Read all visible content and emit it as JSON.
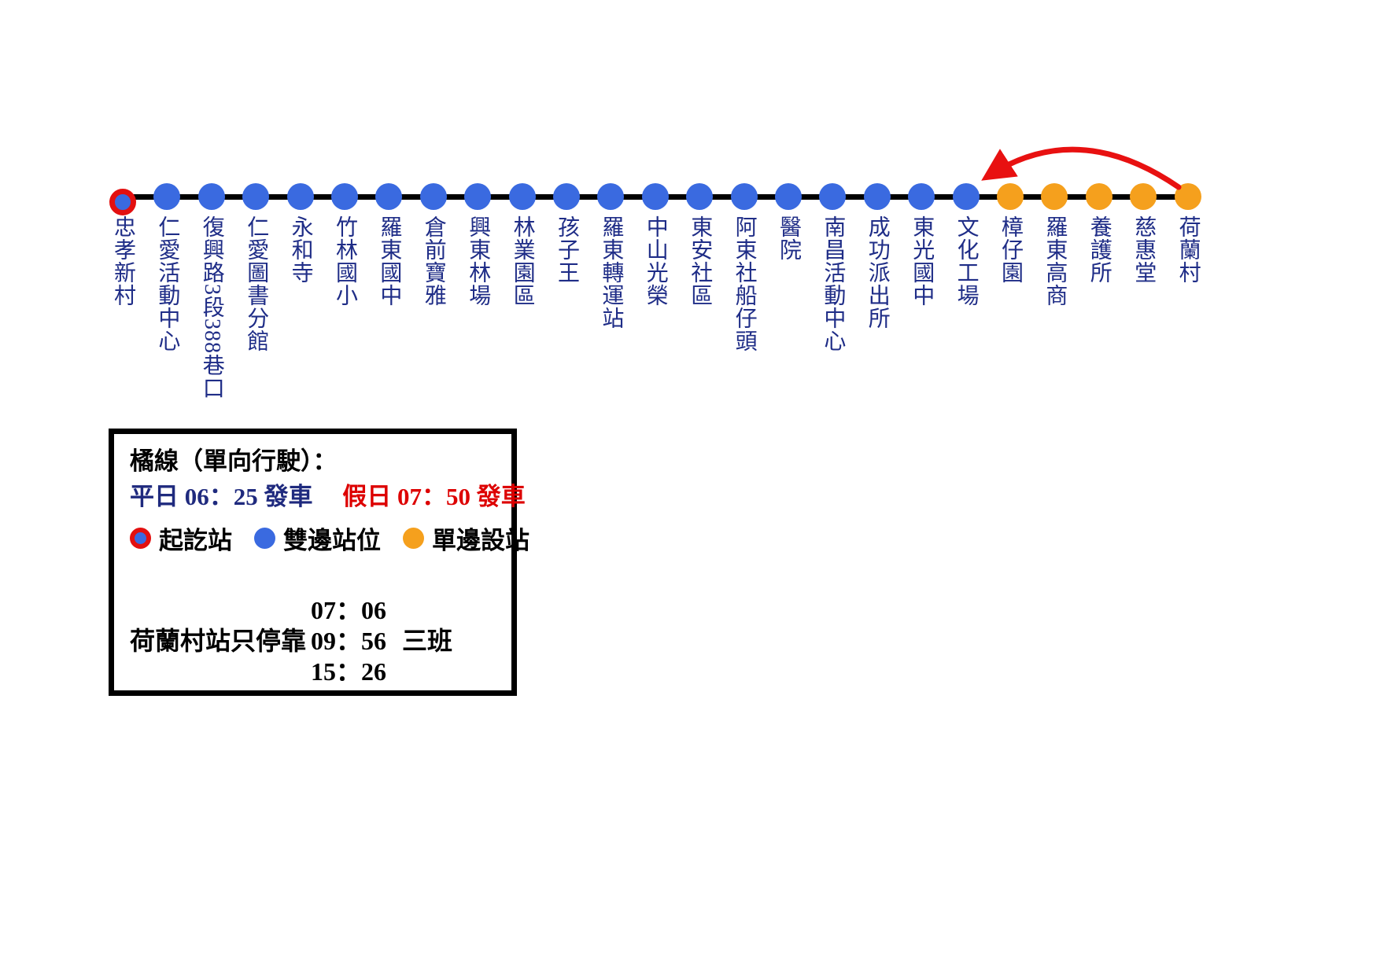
{
  "route": {
    "stops": [
      {
        "name": "忠孝新村",
        "type": "terminus"
      },
      {
        "name": "仁愛活動中心",
        "type": "both-side"
      },
      {
        "name": "復興路3段388巷口",
        "type": "both-side"
      },
      {
        "name": "仁愛圖書分館",
        "type": "both-side"
      },
      {
        "name": "永和寺",
        "type": "both-side"
      },
      {
        "name": "竹林國小",
        "type": "both-side"
      },
      {
        "name": "羅東國中",
        "type": "both-side"
      },
      {
        "name": "倉前寶雅",
        "type": "both-side"
      },
      {
        "name": "興東林場",
        "type": "both-side"
      },
      {
        "name": "林業園區",
        "type": "both-side"
      },
      {
        "name": "孩子王",
        "type": "both-side"
      },
      {
        "name": "羅東轉運站",
        "type": "both-side"
      },
      {
        "name": "中山光榮",
        "type": "both-side"
      },
      {
        "name": "東安社區",
        "type": "both-side"
      },
      {
        "name": "阿束社船仔頭",
        "type": "both-side"
      },
      {
        "name": "醫院",
        "type": "both-side"
      },
      {
        "name": "南昌活動中心",
        "type": "both-side"
      },
      {
        "name": "成功派出所",
        "type": "both-side"
      },
      {
        "name": "東光國中",
        "type": "both-side"
      },
      {
        "name": "文化工場",
        "type": "both-side"
      },
      {
        "name": "樟仔園",
        "type": "single-side"
      },
      {
        "name": "羅東高商",
        "type": "single-side"
      },
      {
        "name": "養護所",
        "type": "single-side"
      },
      {
        "name": "慈惠堂",
        "type": "single-side"
      },
      {
        "name": "荷蘭村",
        "type": "single-side"
      }
    ],
    "arrow": {
      "from": "荷蘭村",
      "to": "文化工場"
    }
  },
  "legend": {
    "title": "橘線（單向行駛）：",
    "weekday_departure": "平日 06：25 發車",
    "holiday_departure": "假日 07：50 發車",
    "items": [
      {
        "label": "起訖站",
        "type": "terminus"
      },
      {
        "label": "雙邊站位",
        "type": "both-side"
      },
      {
        "label": "單邊設站",
        "type": "single-side"
      }
    ],
    "note": {
      "label": "荷蘭村站只停靠",
      "times": [
        "07：06",
        "09：56",
        "15：26"
      ],
      "suffix": "三班"
    }
  },
  "colors": {
    "terminus_ring": "#e31010",
    "both_side_stop": "#3a6ae0",
    "single_side_stop": "#f5a01d",
    "route_line": "#000000",
    "arrow": "#e81111",
    "station_text": "#1f2d87",
    "weekday_text": "#1f2a7e",
    "holiday_text": "#dd0000"
  }
}
